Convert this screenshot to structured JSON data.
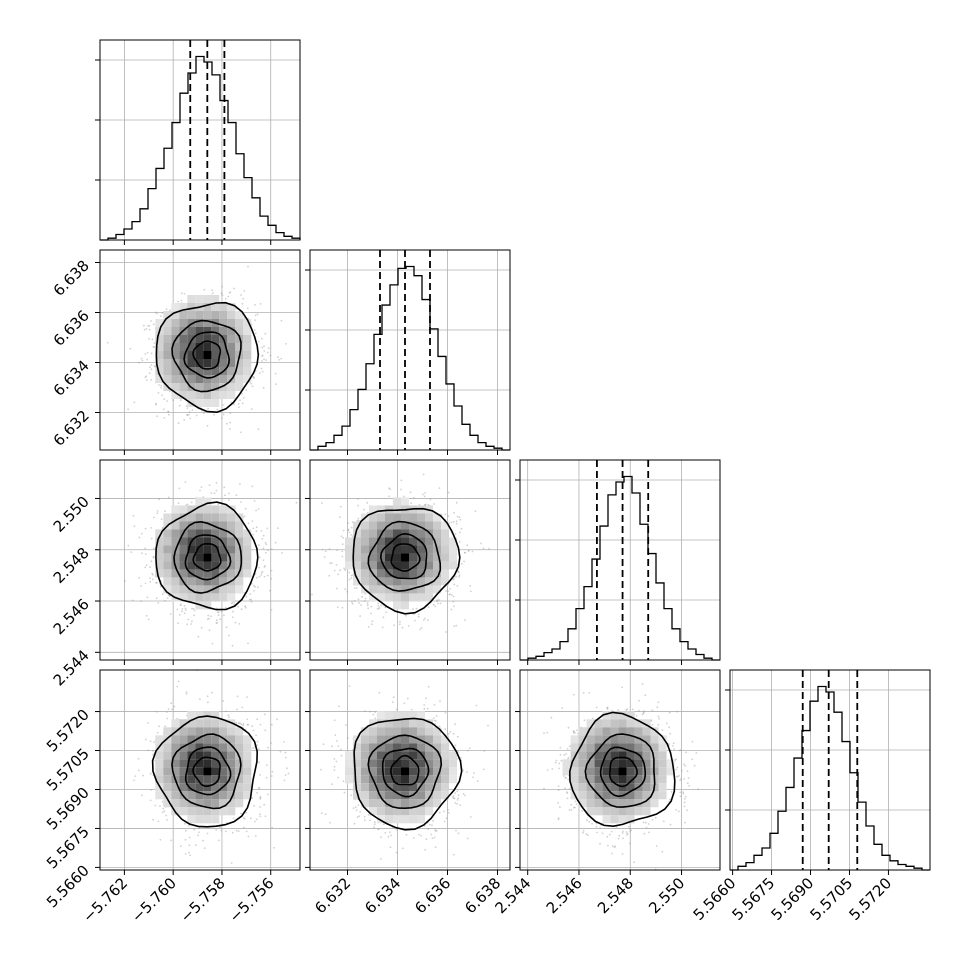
{
  "chart_data": {
    "type": "corner",
    "grid": true,
    "parameters": [
      {
        "name": "",
        "range": [
          -5.763,
          -5.7548
        ],
        "ticks": [
          -5.762,
          -5.76,
          -5.758,
          -5.756
        ],
        "tick_labels": [
          "−5.762",
          "−5.760",
          "−5.758",
          "−5.756"
        ],
        "quantiles": [
          -5.7593,
          -5.7586,
          -5.7579
        ],
        "median": -5.7586,
        "sigma": 0.00101,
        "histogram": [
          0,
          0.01,
          0.03,
          0.06,
          0.1,
          0.17,
          0.28,
          0.39,
          0.5,
          0.64,
          0.8,
          0.91,
          1.0,
          0.97,
          0.9,
          0.76,
          0.64,
          0.47,
          0.34,
          0.23,
          0.13,
          0.08,
          0.04,
          0.02,
          0.01
        ]
      },
      {
        "name": "",
        "range": [
          6.6305,
          6.6385
        ],
        "ticks": [
          6.632,
          6.634,
          6.636,
          6.638
        ],
        "tick_labels": [
          "6.632",
          "6.634",
          "6.636",
          "6.638"
        ],
        "quantiles": [
          6.6333,
          6.6343,
          6.6353
        ],
        "median": 6.6343,
        "sigma": 0.00103,
        "histogram": [
          0,
          0.02,
          0.04,
          0.08,
          0.13,
          0.22,
          0.33,
          0.47,
          0.63,
          0.79,
          0.9,
          0.99,
          1.0,
          0.95,
          0.82,
          0.66,
          0.51,
          0.36,
          0.24,
          0.14,
          0.08,
          0.04,
          0.02,
          0.01,
          0
        ]
      },
      {
        "name": "",
        "range": [
          2.5437,
          2.5515
        ],
        "ticks": [
          2.544,
          2.546,
          2.548,
          2.55
        ],
        "tick_labels": [
          "2.544",
          "2.546",
          "2.548",
          "2.550"
        ],
        "quantiles": [
          2.5467,
          2.5477,
          2.5487
        ],
        "median": 2.5477,
        "sigma": 0.00098,
        "histogram": [
          0,
          0.01,
          0.02,
          0.04,
          0.06,
          0.1,
          0.17,
          0.28,
          0.4,
          0.55,
          0.73,
          0.9,
          0.97,
          1.0,
          0.91,
          0.74,
          0.58,
          0.42,
          0.28,
          0.17,
          0.1,
          0.06,
          0.03,
          0.01,
          0
        ]
      },
      {
        "name": "",
        "range": [
          5.5659,
          5.5736
        ],
        "ticks": [
          5.566,
          5.5675,
          5.569,
          5.5705,
          5.572
        ],
        "tick_labels": [
          "5.5660",
          "5.5675",
          "5.5690",
          "5.5705",
          "5.5720"
        ],
        "quantiles": [
          5.5687,
          5.5697,
          5.5708
        ],
        "median": 5.5697,
        "sigma": 0.00103,
        "histogram": [
          0,
          0.02,
          0.04,
          0.08,
          0.12,
          0.2,
          0.32,
          0.45,
          0.61,
          0.76,
          0.92,
          1.0,
          0.97,
          0.86,
          0.7,
          0.53,
          0.37,
          0.24,
          0.14,
          0.08,
          0.05,
          0.03,
          0.02,
          0.01,
          0
        ]
      }
    ],
    "contour_levels_sigma": [
      0.5,
      1.0,
      1.5,
      2.0
    ],
    "quantile_line_style": "dashed",
    "histogram_style": "step",
    "colors": {
      "line": "#000000",
      "density": "#808080",
      "grid": "#b0b0b0"
    }
  }
}
